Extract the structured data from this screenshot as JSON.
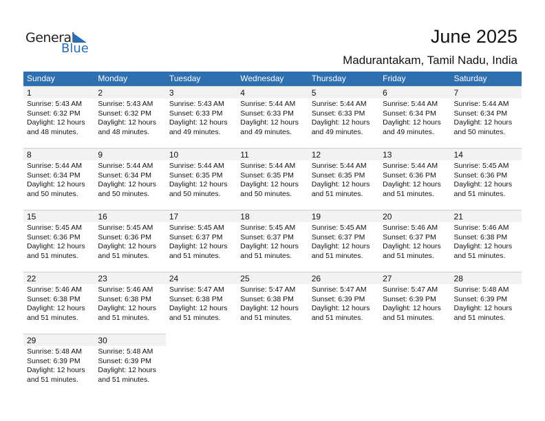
{
  "logo": {
    "text1": "General",
    "text2": "Blue"
  },
  "title": "June 2025",
  "location": "Madurantakam, Tamil Nadu, India",
  "weekdays": [
    "Sunday",
    "Monday",
    "Tuesday",
    "Wednesday",
    "Thursday",
    "Friday",
    "Saturday"
  ],
  "colors": {
    "header": "#2e6fb0",
    "date_strip": "#f2f2f2"
  },
  "weeks": [
    [
      {
        "d": "1",
        "rise": "Sunrise: 5:43 AM",
        "set": "Sunset: 6:32 PM",
        "dl": "Daylight: 12 hours",
        "min": "and 48 minutes."
      },
      {
        "d": "2",
        "rise": "Sunrise: 5:43 AM",
        "set": "Sunset: 6:32 PM",
        "dl": "Daylight: 12 hours",
        "min": "and 48 minutes."
      },
      {
        "d": "3",
        "rise": "Sunrise: 5:43 AM",
        "set": "Sunset: 6:33 PM",
        "dl": "Daylight: 12 hours",
        "min": "and 49 minutes."
      },
      {
        "d": "4",
        "rise": "Sunrise: 5:44 AM",
        "set": "Sunset: 6:33 PM",
        "dl": "Daylight: 12 hours",
        "min": "and 49 minutes."
      },
      {
        "d": "5",
        "rise": "Sunrise: 5:44 AM",
        "set": "Sunset: 6:33 PM",
        "dl": "Daylight: 12 hours",
        "min": "and 49 minutes."
      },
      {
        "d": "6",
        "rise": "Sunrise: 5:44 AM",
        "set": "Sunset: 6:34 PM",
        "dl": "Daylight: 12 hours",
        "min": "and 49 minutes."
      },
      {
        "d": "7",
        "rise": "Sunrise: 5:44 AM",
        "set": "Sunset: 6:34 PM",
        "dl": "Daylight: 12 hours",
        "min": "and 50 minutes."
      }
    ],
    [
      {
        "d": "8",
        "rise": "Sunrise: 5:44 AM",
        "set": "Sunset: 6:34 PM",
        "dl": "Daylight: 12 hours",
        "min": "and 50 minutes."
      },
      {
        "d": "9",
        "rise": "Sunrise: 5:44 AM",
        "set": "Sunset: 6:34 PM",
        "dl": "Daylight: 12 hours",
        "min": "and 50 minutes."
      },
      {
        "d": "10",
        "rise": "Sunrise: 5:44 AM",
        "set": "Sunset: 6:35 PM",
        "dl": "Daylight: 12 hours",
        "min": "and 50 minutes."
      },
      {
        "d": "11",
        "rise": "Sunrise: 5:44 AM",
        "set": "Sunset: 6:35 PM",
        "dl": "Daylight: 12 hours",
        "min": "and 50 minutes."
      },
      {
        "d": "12",
        "rise": "Sunrise: 5:44 AM",
        "set": "Sunset: 6:35 PM",
        "dl": "Daylight: 12 hours",
        "min": "and 51 minutes."
      },
      {
        "d": "13",
        "rise": "Sunrise: 5:44 AM",
        "set": "Sunset: 6:36 PM",
        "dl": "Daylight: 12 hours",
        "min": "and 51 minutes."
      },
      {
        "d": "14",
        "rise": "Sunrise: 5:45 AM",
        "set": "Sunset: 6:36 PM",
        "dl": "Daylight: 12 hours",
        "min": "and 51 minutes."
      }
    ],
    [
      {
        "d": "15",
        "rise": "Sunrise: 5:45 AM",
        "set": "Sunset: 6:36 PM",
        "dl": "Daylight: 12 hours",
        "min": "and 51 minutes."
      },
      {
        "d": "16",
        "rise": "Sunrise: 5:45 AM",
        "set": "Sunset: 6:36 PM",
        "dl": "Daylight: 12 hours",
        "min": "and 51 minutes."
      },
      {
        "d": "17",
        "rise": "Sunrise: 5:45 AM",
        "set": "Sunset: 6:37 PM",
        "dl": "Daylight: 12 hours",
        "min": "and 51 minutes."
      },
      {
        "d": "18",
        "rise": "Sunrise: 5:45 AM",
        "set": "Sunset: 6:37 PM",
        "dl": "Daylight: 12 hours",
        "min": "and 51 minutes."
      },
      {
        "d": "19",
        "rise": "Sunrise: 5:45 AM",
        "set": "Sunset: 6:37 PM",
        "dl": "Daylight: 12 hours",
        "min": "and 51 minutes."
      },
      {
        "d": "20",
        "rise": "Sunrise: 5:46 AM",
        "set": "Sunset: 6:37 PM",
        "dl": "Daylight: 12 hours",
        "min": "and 51 minutes."
      },
      {
        "d": "21",
        "rise": "Sunrise: 5:46 AM",
        "set": "Sunset: 6:38 PM",
        "dl": "Daylight: 12 hours",
        "min": "and 51 minutes."
      }
    ],
    [
      {
        "d": "22",
        "rise": "Sunrise: 5:46 AM",
        "set": "Sunset: 6:38 PM",
        "dl": "Daylight: 12 hours",
        "min": "and 51 minutes."
      },
      {
        "d": "23",
        "rise": "Sunrise: 5:46 AM",
        "set": "Sunset: 6:38 PM",
        "dl": "Daylight: 12 hours",
        "min": "and 51 minutes."
      },
      {
        "d": "24",
        "rise": "Sunrise: 5:47 AM",
        "set": "Sunset: 6:38 PM",
        "dl": "Daylight: 12 hours",
        "min": "and 51 minutes."
      },
      {
        "d": "25",
        "rise": "Sunrise: 5:47 AM",
        "set": "Sunset: 6:38 PM",
        "dl": "Daylight: 12 hours",
        "min": "and 51 minutes."
      },
      {
        "d": "26",
        "rise": "Sunrise: 5:47 AM",
        "set": "Sunset: 6:39 PM",
        "dl": "Daylight: 12 hours",
        "min": "and 51 minutes."
      },
      {
        "d": "27",
        "rise": "Sunrise: 5:47 AM",
        "set": "Sunset: 6:39 PM",
        "dl": "Daylight: 12 hours",
        "min": "and 51 minutes."
      },
      {
        "d": "28",
        "rise": "Sunrise: 5:48 AM",
        "set": "Sunset: 6:39 PM",
        "dl": "Daylight: 12 hours",
        "min": "and 51 minutes."
      }
    ],
    [
      {
        "d": "29",
        "rise": "Sunrise: 5:48 AM",
        "set": "Sunset: 6:39 PM",
        "dl": "Daylight: 12 hours",
        "min": "and 51 minutes."
      },
      {
        "d": "30",
        "rise": "Sunrise: 5:48 AM",
        "set": "Sunset: 6:39 PM",
        "dl": "Daylight: 12 hours",
        "min": "and 51 minutes."
      },
      null,
      null,
      null,
      null,
      null
    ]
  ]
}
